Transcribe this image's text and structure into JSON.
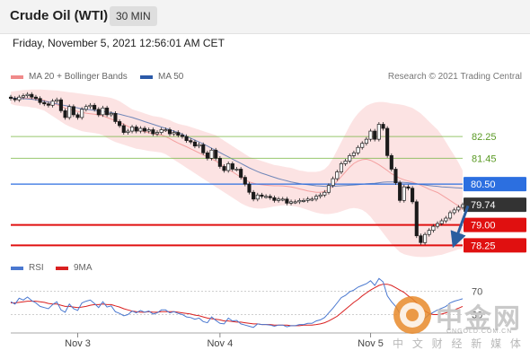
{
  "header": {
    "title": "Crude Oil (WTI)",
    "timeframe": "30 MIN"
  },
  "datetime": "Friday, November 5, 2021 12:56:01 AM CET",
  "legend": {
    "bollinger": {
      "label": "MA 20 + Bollinger Bands",
      "color": "#f08a8a"
    },
    "ma50": {
      "label": "MA 50",
      "color": "#2b5aa8"
    },
    "rsi": {
      "label": "RSI",
      "color": "#4a78d0"
    },
    "rsi_ma": {
      "label": "9MA",
      "color": "#d92020"
    }
  },
  "credit": "Research © 2021 Trading Central",
  "watermark": {
    "main": "中金网",
    "sub": "中 文 财 经 新 媒 体",
    "url": "CNGOLD.COM.CN"
  },
  "chart_data": {
    "type": "candlestick",
    "ylim": [
      77.7,
      84.3
    ],
    "x_labels": [
      {
        "label": "Nov 3",
        "index": 16
      },
      {
        "label": "Nov 4",
        "index": 50
      },
      {
        "label": "Nov 5",
        "index": 86
      }
    ],
    "levels": [
      {
        "label": "82.25",
        "value": 82.25,
        "kind": "resistance"
      },
      {
        "label": "81.45",
        "value": 81.45,
        "kind": "resistance"
      },
      {
        "label": "80.50",
        "value": 80.5,
        "kind": "pivot"
      },
      {
        "label": "79.74",
        "value": 79.74,
        "kind": "last"
      },
      {
        "label": "79.00",
        "value": 79.0,
        "kind": "support"
      },
      {
        "label": "78.25",
        "value": 78.25,
        "kind": "support"
      }
    ],
    "level_colors": {
      "resistance": "#7db84a",
      "pivot": "#2c6fe0",
      "last": "#333333",
      "support": "#e01010"
    },
    "forecast": {
      "from_value": 79.7,
      "to_value": 78.3
    },
    "closes": [
      83.65,
      83.6,
      83.7,
      83.75,
      83.8,
      83.7,
      83.65,
      83.5,
      83.45,
      83.4,
      83.55,
      83.6,
      83.2,
      82.95,
      83.35,
      83.05,
      82.95,
      83.25,
      83.35,
      83.4,
      83.25,
      83.05,
      83.3,
      83.05,
      83.1,
      82.8,
      82.65,
      82.4,
      82.45,
      82.6,
      82.45,
      82.55,
      82.45,
      82.5,
      82.35,
      82.4,
      82.5,
      82.5,
      82.35,
      82.4,
      82.3,
      82.25,
      82.1,
      82.05,
      81.9,
      81.95,
      81.65,
      81.45,
      81.75,
      81.45,
      81.15,
      81.0,
      81.25,
      81.05,
      81.05,
      80.75,
      80.5,
      80.2,
      79.95,
      80.1,
      80.05,
      80.05,
      80.0,
      79.9,
      79.95,
      79.95,
      79.8,
      79.85,
      79.85,
      79.9,
      79.9,
      79.95,
      79.95,
      80.05,
      80.1,
      80.2,
      80.45,
      80.7,
      80.95,
      81.25,
      81.35,
      81.55,
      81.65,
      81.85,
      82.0,
      82.15,
      82.45,
      82.15,
      82.7,
      82.55,
      81.55,
      81.05,
      80.55,
      79.9,
      80.4,
      80.35,
      79.85,
      78.6,
      78.35,
      78.65,
      78.8,
      78.95,
      79.05,
      79.15,
      79.25,
      79.45,
      79.55,
      79.65,
      79.74
    ],
    "bb_upper": [
      83.9,
      83.92,
      83.94,
      83.96,
      83.97,
      83.98,
      83.98,
      83.98,
      83.97,
      83.96,
      83.95,
      83.94,
      83.92,
      83.9,
      83.88,
      83.86,
      83.84,
      83.82,
      83.8,
      83.78,
      83.76,
      83.74,
      83.72,
      83.7,
      83.67,
      83.62,
      83.55,
      83.45,
      83.35,
      83.25,
      83.2,
      83.15,
      83.1,
      83.05,
      83.0,
      82.98,
      82.95,
      82.9,
      82.85,
      82.78,
      82.72,
      82.68,
      82.65,
      82.6,
      82.55,
      82.5,
      82.45,
      82.4,
      82.35,
      82.3,
      82.2,
      82.1,
      82.0,
      81.9,
      81.8,
      81.7,
      81.6,
      81.5,
      81.45,
      81.4,
      81.35,
      81.3,
      81.25,
      81.2,
      81.18,
      81.15,
      81.12,
      81.1,
      81.05,
      81.0,
      80.98,
      80.95,
      80.95,
      80.95,
      80.98,
      81.05,
      81.2,
      81.45,
      81.75,
      82.05,
      82.35,
      82.65,
      82.9,
      83.1,
      83.25,
      83.38,
      83.45,
      83.5,
      83.52,
      83.52,
      83.5,
      83.47,
      83.45,
      83.43,
      83.4,
      83.35,
      83.3,
      83.2,
      83.1,
      82.95,
      82.8,
      82.65,
      82.5,
      82.3,
      82.05,
      81.8,
      81.55,
      81.3,
      81.0
    ],
    "bb_lower": [
      83.45,
      83.4,
      83.38,
      83.36,
      83.35,
      83.32,
      83.3,
      83.25,
      83.2,
      83.1,
      83.0,
      82.9,
      82.8,
      82.7,
      82.62,
      82.56,
      82.5,
      82.45,
      82.42,
      82.4,
      82.38,
      82.35,
      82.3,
      82.2,
      82.12,
      82.05,
      82.0,
      81.95,
      81.9,
      81.85,
      81.8,
      81.78,
      81.75,
      81.72,
      81.7,
      81.68,
      81.66,
      81.6,
      81.5,
      81.4,
      81.3,
      81.2,
      81.1,
      81.0,
      80.9,
      80.8,
      80.7,
      80.6,
      80.5,
      80.4,
      80.3,
      80.2,
      80.1,
      80.0,
      79.9,
      79.8,
      79.72,
      79.66,
      79.62,
      79.6,
      79.6,
      79.62,
      79.65,
      79.68,
      79.7,
      79.72,
      79.72,
      79.7,
      79.68,
      79.65,
      79.6,
      79.55,
      79.5,
      79.45,
      79.42,
      79.4,
      79.4,
      79.42,
      79.45,
      79.5,
      79.55,
      79.6,
      79.62,
      79.6,
      79.55,
      79.45,
      79.3,
      79.1,
      78.9,
      78.7,
      78.5,
      78.3,
      78.15,
      78.0,
      77.92,
      77.88,
      77.85,
      77.83,
      77.82,
      77.82,
      77.83,
      77.85,
      77.88,
      77.9,
      77.95,
      78.0,
      78.05,
      78.1,
      78.12
    ],
    "ma50": [
      83.67,
      83.66,
      83.65,
      83.64,
      83.63,
      83.62,
      83.6,
      83.58,
      83.55,
      83.52,
      83.49,
      83.45,
      83.42,
      83.39,
      83.36,
      83.33,
      83.3,
      83.27,
      83.25,
      83.23,
      83.21,
      83.19,
      83.17,
      83.15,
      83.13,
      83.1,
      83.07,
      83.03,
      82.99,
      82.95,
      82.9,
      82.85,
      82.8,
      82.75,
      82.7,
      82.65,
      82.6,
      82.55,
      82.5,
      82.45,
      82.4,
      82.33,
      82.26,
      82.19,
      82.12,
      82.05,
      81.98,
      81.9,
      81.82,
      81.74,
      81.66,
      81.58,
      81.5,
      81.42,
      81.34,
      81.26,
      81.18,
      81.1,
      81.03,
      80.96,
      80.9,
      80.85,
      80.8,
      80.75,
      80.7,
      80.66,
      80.62,
      80.58,
      80.55,
      80.52,
      80.5,
      80.48,
      80.46,
      80.44,
      80.43,
      80.42,
      80.42,
      80.42,
      80.43,
      80.44,
      80.45,
      80.46,
      80.47,
      80.48,
      80.5,
      80.51,
      80.52,
      80.53,
      80.55,
      80.57,
      80.58,
      80.58,
      80.58,
      80.57,
      80.56,
      80.55,
      80.53,
      80.51,
      80.49,
      80.47,
      80.45,
      80.43,
      80.42,
      80.4,
      80.39,
      80.38,
      80.37,
      80.36,
      80.35
    ],
    "rsi": [
      52,
      48,
      58,
      55,
      60,
      54,
      50,
      44,
      42,
      40,
      47,
      52,
      38,
      34,
      48,
      40,
      37,
      50,
      53,
      55,
      49,
      42,
      52,
      43,
      45,
      35,
      32,
      28,
      30,
      36,
      33,
      37,
      34,
      36,
      31,
      33,
      38,
      38,
      33,
      35,
      32,
      30,
      26,
      25,
      22,
      24,
      18,
      16,
      26,
      20,
      15,
      14,
      24,
      19,
      20,
      14,
      12,
      10,
      8,
      14,
      13,
      13,
      12,
      10,
      12,
      12,
      9,
      11,
      11,
      13,
      13,
      15,
      15,
      19,
      21,
      25,
      33,
      41,
      50,
      59,
      63,
      69,
      72,
      77,
      80,
      83,
      88,
      80,
      92,
      86,
      62,
      52,
      44,
      32,
      42,
      40,
      34,
      18,
      14,
      24,
      30,
      34,
      38,
      41,
      44,
      50,
      53,
      55,
      57
    ],
    "rsi_ma": [
      50,
      50,
      51,
      52,
      53,
      53,
      53,
      52,
      51,
      49,
      48,
      48,
      46,
      44,
      44,
      43,
      42,
      43,
      44,
      46,
      47,
      47,
      48,
      47,
      47,
      45,
      43,
      40,
      38,
      36,
      35,
      34,
      34,
      35,
      34,
      34,
      35,
      35,
      35,
      35,
      34,
      33,
      32,
      31,
      29,
      28,
      26,
      24,
      23,
      22,
      21,
      19,
      19,
      18,
      17,
      17,
      16,
      15,
      14,
      14,
      13,
      13,
      13,
      12,
      12,
      12,
      12,
      11,
      11,
      11,
      12,
      12,
      12,
      13,
      14,
      16,
      19,
      23,
      27,
      33,
      39,
      45,
      51,
      56,
      62,
      67,
      72,
      76,
      80,
      82,
      82,
      80,
      76,
      72,
      68,
      62,
      57,
      50,
      42,
      36,
      32,
      30,
      30,
      31,
      33,
      36,
      38,
      41,
      44
    ],
    "rsi_levels": [
      {
        "label": "70",
        "value": 70
      },
      {
        "label": "30",
        "value": 30
      }
    ]
  }
}
